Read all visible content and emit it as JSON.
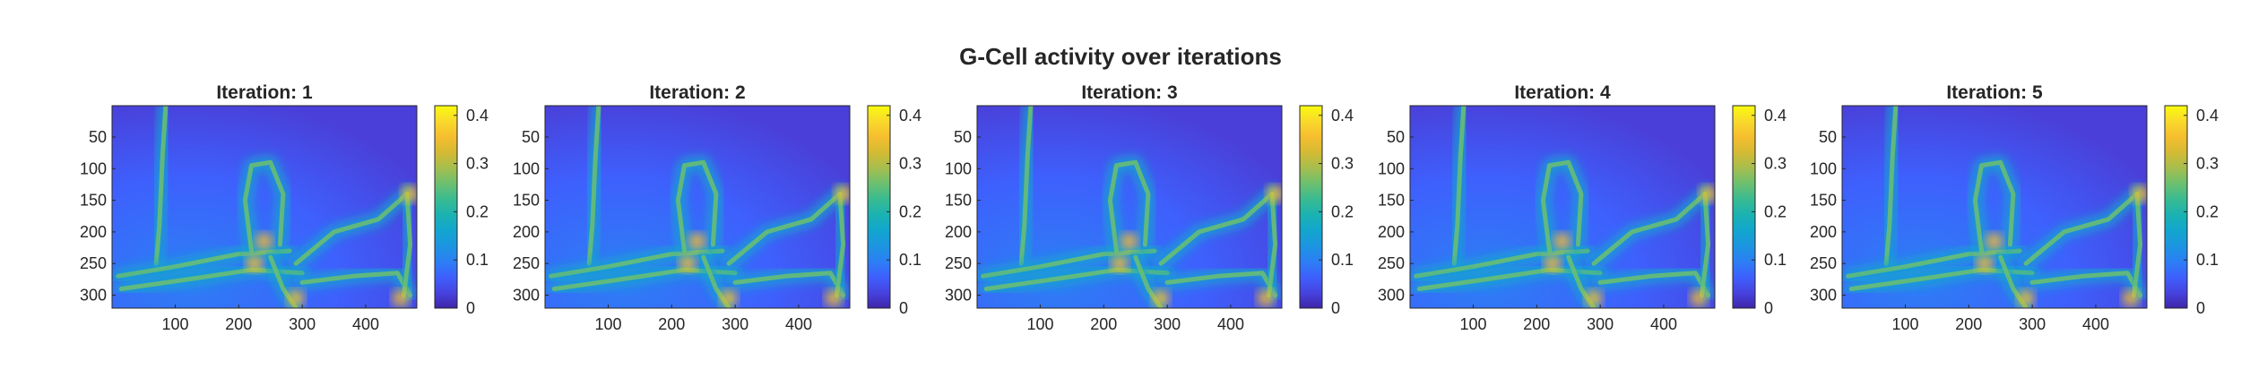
{
  "figure": {
    "title": "G-Cell activity over iterations"
  },
  "chart_data": [
    {
      "type": "heatmap",
      "title": "Iteration: 1",
      "xlabel": "",
      "ylabel": "",
      "x_ticks": [
        100,
        200,
        300,
        400
      ],
      "y_ticks": [
        50,
        100,
        150,
        200,
        250,
        300
      ],
      "xlim": [
        0.5,
        480.5
      ],
      "ylim": [
        0.5,
        320.5
      ],
      "y_reversed": true,
      "colorbar": {
        "ticks": [
          0,
          0.1,
          0.2,
          0.3,
          0.4
        ],
        "tick_labels": [
          "0",
          "0.1",
          "0.2",
          "0.3",
          "0.4"
        ],
        "clim": [
          0,
          0.42
        ],
        "colormap": "parula"
      },
      "grid": false
    },
    {
      "type": "heatmap",
      "title": "Iteration: 2",
      "xlabel": "",
      "ylabel": "",
      "x_ticks": [
        100,
        200,
        300,
        400
      ],
      "y_ticks": [
        50,
        100,
        150,
        200,
        250,
        300
      ],
      "xlim": [
        0.5,
        480.5
      ],
      "ylim": [
        0.5,
        320.5
      ],
      "y_reversed": true,
      "colorbar": {
        "ticks": [
          0,
          0.1,
          0.2,
          0.3,
          0.4
        ],
        "tick_labels": [
          "0",
          "0.1",
          "0.2",
          "0.3",
          "0.4"
        ],
        "clim": [
          0,
          0.42
        ],
        "colormap": "parula"
      },
      "grid": false
    },
    {
      "type": "heatmap",
      "title": "Iteration: 3",
      "xlabel": "",
      "ylabel": "",
      "x_ticks": [
        100,
        200,
        300,
        400
      ],
      "y_ticks": [
        50,
        100,
        150,
        200,
        250,
        300
      ],
      "xlim": [
        0.5,
        480.5
      ],
      "ylim": [
        0.5,
        320.5
      ],
      "y_reversed": true,
      "colorbar": {
        "ticks": [
          0,
          0.1,
          0.2,
          0.3,
          0.4
        ],
        "tick_labels": [
          "0",
          "0.1",
          "0.2",
          "0.3",
          "0.4"
        ],
        "clim": [
          0,
          0.42
        ],
        "colormap": "parula"
      },
      "grid": false
    },
    {
      "type": "heatmap",
      "title": "Iteration: 4",
      "xlabel": "",
      "ylabel": "",
      "x_ticks": [
        100,
        200,
        300,
        400
      ],
      "y_ticks": [
        50,
        100,
        150,
        200,
        250,
        300
      ],
      "xlim": [
        0.5,
        480.5
      ],
      "ylim": [
        0.5,
        320.5
      ],
      "y_reversed": true,
      "colorbar": {
        "ticks": [
          0,
          0.1,
          0.2,
          0.3,
          0.4
        ],
        "tick_labels": [
          "0",
          "0.1",
          "0.2",
          "0.3",
          "0.4"
        ],
        "clim": [
          0,
          0.42
        ],
        "colormap": "parula"
      },
      "grid": false
    },
    {
      "type": "heatmap",
      "title": "Iteration: 5",
      "xlabel": "",
      "ylabel": "",
      "x_ticks": [
        100,
        200,
        300,
        400
      ],
      "y_ticks": [
        50,
        100,
        150,
        200,
        250,
        300
      ],
      "xlim": [
        0.5,
        480.5
      ],
      "ylim": [
        0.5,
        320.5
      ],
      "y_reversed": true,
      "colorbar": {
        "ticks": [
          0,
          0.1,
          0.2,
          0.3,
          0.4
        ],
        "tick_labels": [
          "0",
          "0.1",
          "0.2",
          "0.3",
          "0.4"
        ],
        "clim": [
          0,
          0.42
        ],
        "colormap": "parula"
      },
      "grid": false
    }
  ]
}
